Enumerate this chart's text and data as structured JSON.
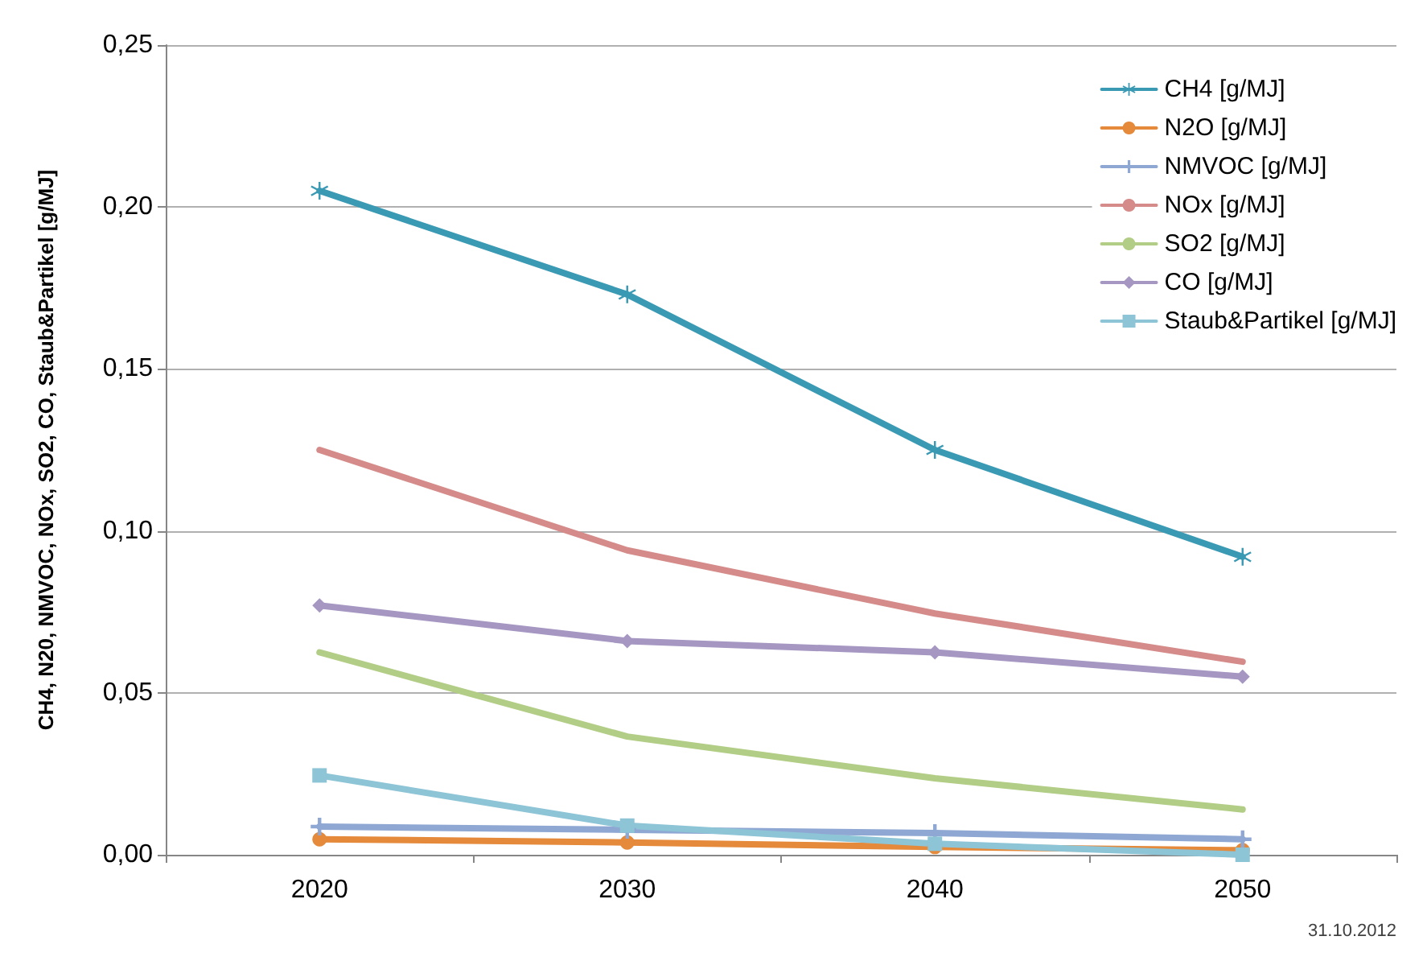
{
  "chart_data": {
    "type": "line",
    "ylabel": "CH4, N20, NMVOC, NOx, SO2, CO, Staub&Partikel [g/MJ]",
    "categories": [
      "2020",
      "2030",
      "2040",
      "2050"
    ],
    "series": [
      {
        "name": "CH4 [g/MJ]",
        "color": "#3a99b3",
        "marker": "star",
        "values": [
          0.205,
          0.173,
          0.125,
          0.092
        ]
      },
      {
        "name": "N2O [g/MJ]",
        "color": "#e5893a",
        "marker": "circle",
        "values": [
          0.0048,
          0.0038,
          0.0024,
          0.0014
        ]
      },
      {
        "name": "NMVOC [g/MJ]",
        "color": "#8fa8d3",
        "marker": "cross",
        "values": [
          0.0087,
          0.0077,
          0.0067,
          0.0048
        ]
      },
      {
        "name": "NOx [g/MJ]",
        "color": "#d48b89",
        "marker": "none",
        "values": [
          0.125,
          0.094,
          0.0745,
          0.0596
        ]
      },
      {
        "name": "SO2 [g/MJ]",
        "color": "#b2cd85",
        "marker": "none",
        "values": [
          0.0625,
          0.0365,
          0.0236,
          0.014
        ]
      },
      {
        "name": "CO [g/MJ]",
        "color": "#a597c2",
        "marker": "diamond",
        "values": [
          0.077,
          0.066,
          0.0625,
          0.055
        ]
      },
      {
        "name": "Staub&Partikel [g/MJ]",
        "color": "#8dc4d6",
        "marker": "square",
        "values": [
          0.0245,
          0.009,
          0.0034,
          0.0
        ]
      }
    ],
    "ylim": [
      0,
      0.25
    ],
    "yticks": [
      {
        "value": 0,
        "label": "0,00"
      },
      {
        "value": 0.05,
        "label": "0,05"
      },
      {
        "value": 0.1,
        "label": "0,10"
      },
      {
        "value": 0.15,
        "label": "0,15"
      },
      {
        "value": 0.2,
        "label": "0,20"
      },
      {
        "value": 0.25,
        "label": "0,25"
      }
    ],
    "grid": "y",
    "legend": "top right",
    "line_style": "solid",
    "annotations": [
      "31.10.2012"
    ]
  }
}
